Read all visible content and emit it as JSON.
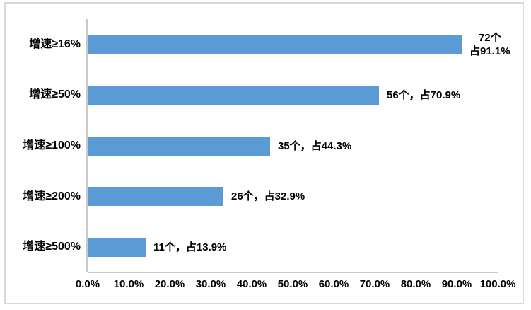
{
  "chart_data": {
    "type": "bar",
    "orientation": "horizontal",
    "title": "",
    "xlabel": "",
    "ylabel": "",
    "categories": [
      "增速≥16%",
      "增速≥50%",
      "增速≥100%",
      "增速≥200%",
      "增速≥500%"
    ],
    "values": [
      91.1,
      70.9,
      44.3,
      32.9,
      13.9
    ],
    "counts": [
      72,
      56,
      35,
      26,
      11
    ],
    "bar_labels": [
      [
        "72个",
        "占91.1%"
      ],
      [
        "56个，占70.9%"
      ],
      [
        "35个，占44.3%"
      ],
      [
        "26个，占32.9%"
      ],
      [
        "11个，占13.9%"
      ]
    ],
    "x_ticks": [
      "0.0%",
      "10.0%",
      "20.0%",
      "30.0%",
      "40.0%",
      "50.0%",
      "60.0%",
      "70.0%",
      "80.0%",
      "90.0%",
      "100.0%"
    ],
    "xlim": [
      0,
      100
    ],
    "grid": false,
    "legend_position": "none",
    "bar_color": "#5b9bd5",
    "axis_color": "#c9c9c9",
    "border_color": "#d9d9d9",
    "text_color": "#000000"
  }
}
